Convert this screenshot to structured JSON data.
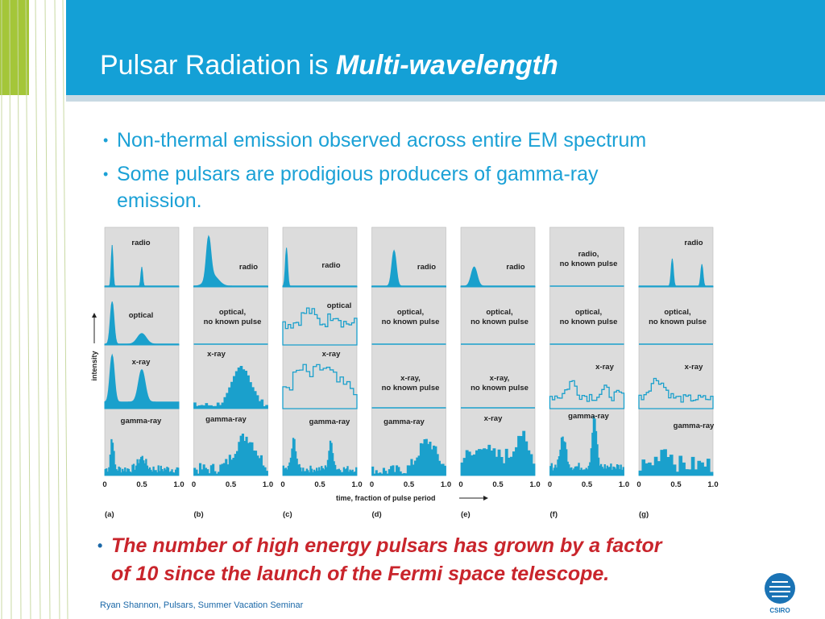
{
  "slide": {
    "title_plain": "Pulsar Radiation is ",
    "title_emph": "Multi-wavelength",
    "bullets": [
      "Non-thermal emission observed across entire EM spectrum",
      "Some pulsars are prodigious producers of gamma-ray",
      "emission."
    ],
    "highlight_line1": "The number of high energy pulsars has grown by a factor",
    "highlight_line2": "of 10 since the launch of the Fermi space telescope.",
    "footer": "Ryan Shannon, Pulsars, Summer Vacation Seminar",
    "logo_text": "CSIRO"
  },
  "colors": {
    "header": "#14a0d6",
    "accent_green": "#a4c639",
    "highlight_red": "#c9252c",
    "bullet_blue": "#1ba1d6"
  },
  "chart_data": {
    "type": "line",
    "title": "",
    "xlabel": "time, fraction of pulse period",
    "ylabel": "intensity",
    "xlim": [
      0,
      1
    ],
    "x_ticks": [
      "0",
      "0.5",
      "1.0"
    ],
    "rows": [
      "radio",
      "optical",
      "x-ray",
      "gamma-ray"
    ],
    "panels": [
      {
        "id": "(a)",
        "labels": [
          "radio",
          "optical",
          "x-ray",
          "gamma-ray"
        ]
      },
      {
        "id": "(b)",
        "labels": [
          "radio",
          "optical,\nno known pulse",
          "x-ray",
          "gamma-ray"
        ]
      },
      {
        "id": "(c)",
        "labels": [
          "radio",
          "optical",
          "x-ray",
          "gamma-ray"
        ]
      },
      {
        "id": "(d)",
        "labels": [
          "radio",
          "optical,\nno known pulse",
          "x-ray,\nno known pulse",
          "gamma-ray"
        ]
      },
      {
        "id": "(e)",
        "labels": [
          "radio",
          "optical,\nno known pulse",
          "x-ray,\nno known pulse",
          "x-ray"
        ]
      },
      {
        "id": "(f)",
        "labels": [
          "radio,\nno known pulse",
          "optical,\nno known pulse",
          "x-ray",
          "gamma-ray"
        ]
      },
      {
        "id": "(g)",
        "labels": [
          "radio",
          "optical,\nno known pulse",
          "x-ray",
          "gamma-ray"
        ]
      }
    ]
  }
}
